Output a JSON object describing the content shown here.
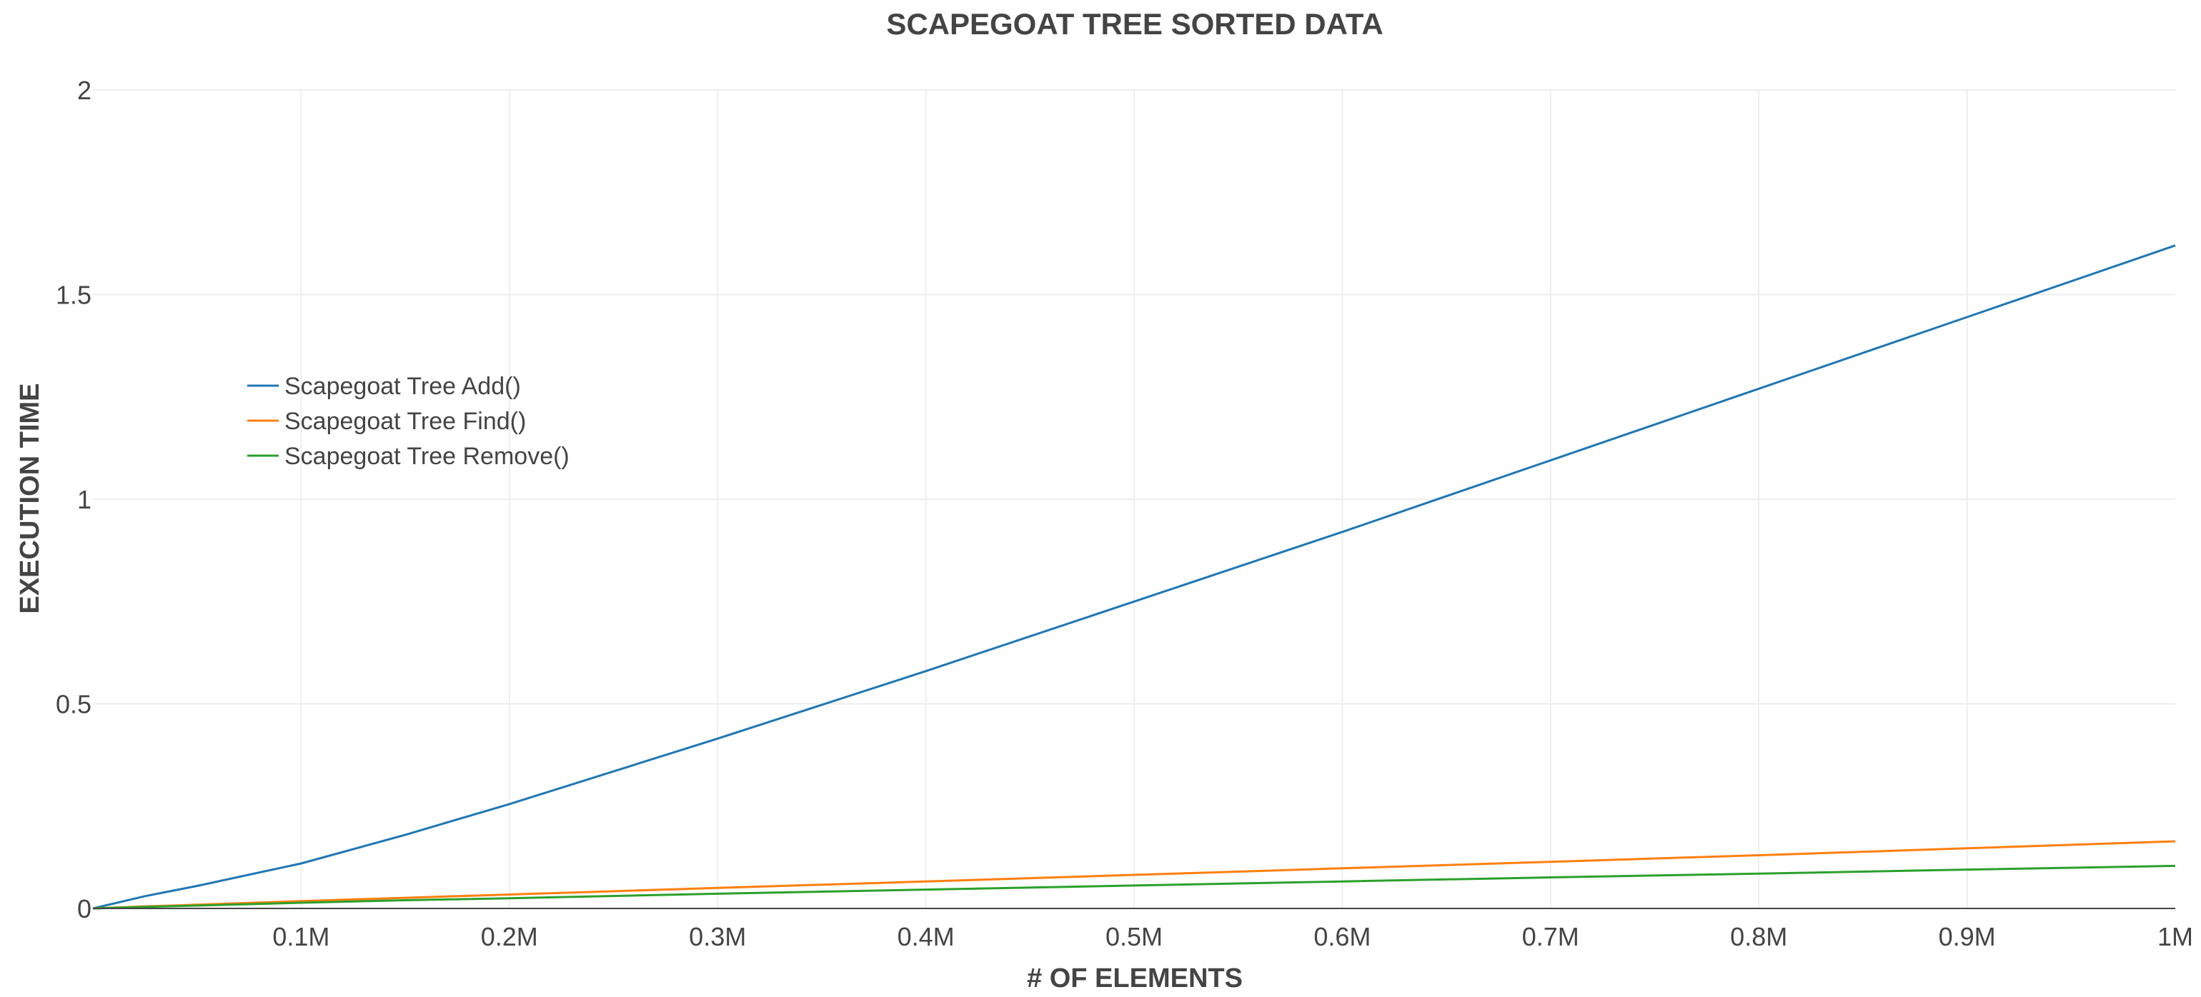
{
  "chart_data": {
    "type": "line",
    "title": "SCAPEGOAT TREE SORTED DATA",
    "xlabel": "# OF ELEMENTS",
    "ylabel": "EXECUTION TIME",
    "xlim": [
      0,
      1000000
    ],
    "ylim": [
      0,
      2
    ],
    "x_ticks": [
      {
        "value": 100000,
        "label": "0.1M"
      },
      {
        "value": 200000,
        "label": "0.2M"
      },
      {
        "value": 300000,
        "label": "0.3M"
      },
      {
        "value": 400000,
        "label": "0.4M"
      },
      {
        "value": 500000,
        "label": "0.5M"
      },
      {
        "value": 600000,
        "label": "0.6M"
      },
      {
        "value": 700000,
        "label": "0.7M"
      },
      {
        "value": 800000,
        "label": "0.8M"
      },
      {
        "value": 900000,
        "label": "0.9M"
      },
      {
        "value": 1000000,
        "label": "1M"
      }
    ],
    "y_ticks": [
      {
        "value": 0,
        "label": "0"
      },
      {
        "value": 0.5,
        "label": "0.5"
      },
      {
        "value": 1,
        "label": "1"
      },
      {
        "value": 1.5,
        "label": "1.5"
      },
      {
        "value": 2,
        "label": "2"
      }
    ],
    "grid": true,
    "legend_position": "left",
    "x": [
      0,
      25000,
      50000,
      100000,
      150000,
      200000,
      300000,
      400000,
      500000,
      600000,
      700000,
      800000,
      900000,
      1000000
    ],
    "series": [
      {
        "name": "Scapegoat Tree Add()",
        "color": "#1f77b4",
        "values": [
          0,
          0.03,
          0.055,
          0.11,
          0.18,
          0.255,
          0.415,
          0.58,
          0.75,
          0.92,
          1.095,
          1.27,
          1.445,
          1.62
        ]
      },
      {
        "name": "Scapegoat Tree Find()",
        "color": "#ff7f0e",
        "values": [
          0,
          0.005,
          0.009,
          0.018,
          0.026,
          0.034,
          0.05,
          0.066,
          0.082,
          0.098,
          0.114,
          0.13,
          0.147,
          0.164
        ]
      },
      {
        "name": "Scapegoat Tree Remove()",
        "color": "#2ca02c",
        "values": [
          0,
          0.004,
          0.007,
          0.014,
          0.02,
          0.025,
          0.036,
          0.046,
          0.056,
          0.066,
          0.076,
          0.085,
          0.095,
          0.104
        ]
      }
    ]
  }
}
